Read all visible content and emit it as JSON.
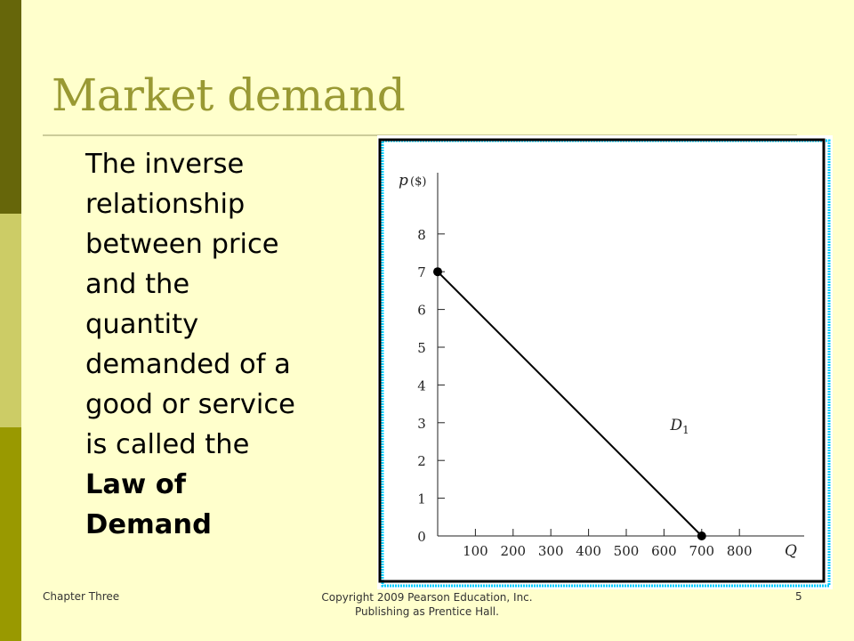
{
  "slide": {
    "title": "Market demand",
    "body_lines": [
      "The inverse",
      "relationship",
      "between price",
      "and the",
      "quantity",
      "demanded of a",
      "good or service",
      "is called the"
    ],
    "body_bold_lines": [
      "Law of",
      "Demand"
    ]
  },
  "footer": {
    "left": "Chapter Three",
    "center_line1": "Copyright  2009 Pearson Education, Inc.",
    "center_line2": "Publishing  as Prentice Hall.",
    "page_number": "5"
  },
  "colors": {
    "background": "#FFFFCC",
    "title": "#999933",
    "frame_shadow": "#00CCFF"
  },
  "chart_data": {
    "type": "line",
    "ylabel": "p",
    "ylabel_unit": "($)",
    "xlabel": "Q",
    "x_ticks": [
      100,
      200,
      300,
      400,
      500,
      600,
      700,
      800
    ],
    "y_ticks": [
      0,
      1,
      2,
      3,
      4,
      5,
      6,
      7,
      8
    ],
    "xlim": [
      0,
      900
    ],
    "ylim": [
      0,
      9
    ],
    "series": [
      {
        "name": "D1",
        "x": [
          0,
          700
        ],
        "y": [
          7,
          0
        ]
      }
    ],
    "annotations": [
      {
        "text": "D",
        "subscript": "1",
        "x": 480,
        "y": 2.9
      }
    ],
    "grid": false,
    "legend": "none"
  }
}
